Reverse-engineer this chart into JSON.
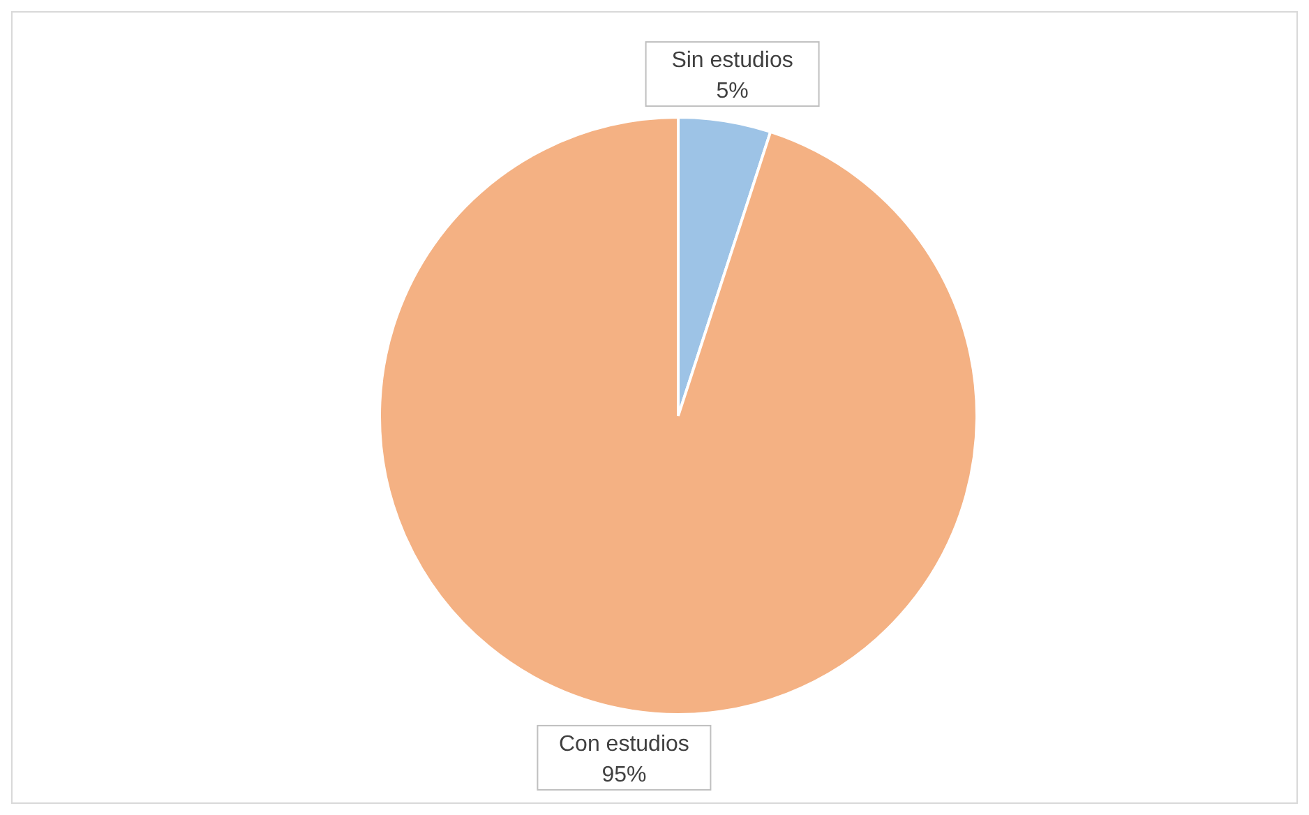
{
  "chart_data": {
    "type": "pie",
    "categories": [
      "Sin estudios",
      "Con estudios"
    ],
    "values": [
      5,
      95
    ],
    "value_labels": [
      "5%",
      "95%"
    ],
    "colors": [
      "#9dc3e6",
      "#f4b183"
    ]
  }
}
